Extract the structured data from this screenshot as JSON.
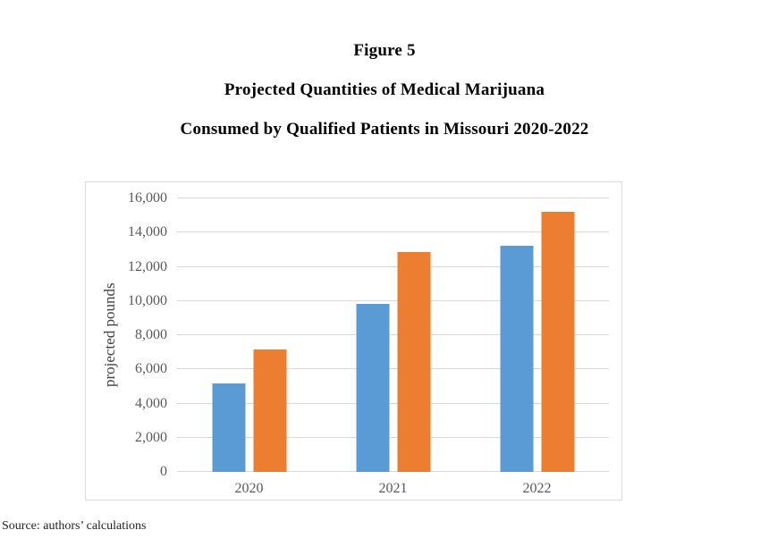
{
  "titles": {
    "line1": "Figure 5",
    "line2": "Projected Quantities of Medical Marijuana",
    "line3": "Consumed by Qualified Patients in Missouri 2020-2022"
  },
  "source": "Source: authors’ calculations",
  "colors": {
    "bar_blue": "#5B9BD5",
    "bar_orange": "#ED7D31",
    "gridline": "#D9D9D9",
    "chart_border": "#D9D9D9",
    "axis_text": "#595959",
    "title_text": "#000000"
  },
  "chart_data": {
    "type": "bar",
    "title": "Figure 5 — Projected Quantities of Medical Marijuana Consumed by Qualified Patients in Missouri 2020-2022",
    "categories": [
      "2020",
      "2021",
      "2022"
    ],
    "series": [
      {
        "name": "series-1",
        "color": "#5B9BD5",
        "values": [
          5200,
          9850,
          13250
        ]
      },
      {
        "name": "series-2",
        "color": "#ED7D31",
        "values": [
          7150,
          12850,
          15200
        ]
      }
    ],
    "xlabel": "",
    "ylabel": "projected pounds",
    "ylim": [
      0,
      16000
    ],
    "ytick_step": 2000,
    "ytick_labels": [
      "0",
      "2,000",
      "4,000",
      "6,000",
      "8,000",
      "10,000",
      "12,000",
      "14,000",
      "16,000"
    ],
    "grid": true,
    "legend": false,
    "legend_position": "none"
  }
}
